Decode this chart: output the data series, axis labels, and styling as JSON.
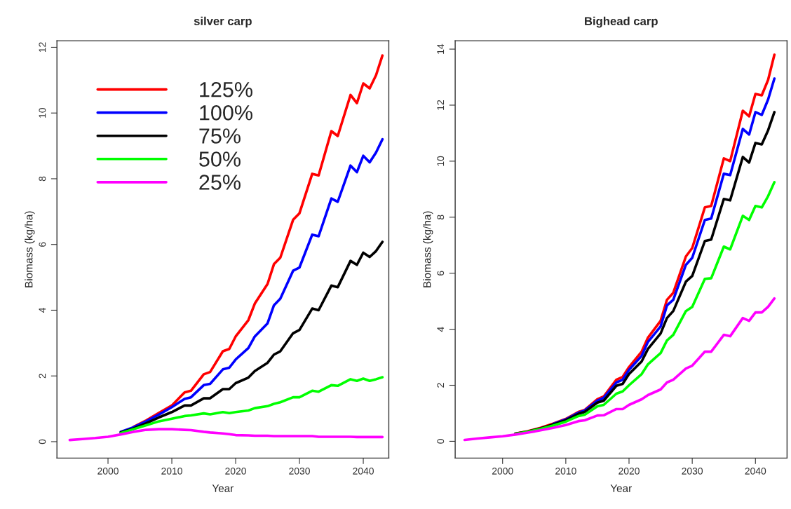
{
  "chart_data": [
    {
      "type": "line",
      "title": "silver carp",
      "xlabel": "Year",
      "ylabel": "Biomass (kg/ha)",
      "legend": "top left",
      "grid": false,
      "x": [
        1994,
        1996,
        1998,
        2000,
        2002,
        2004,
        2006,
        2008,
        2010,
        2012,
        2013,
        2015,
        2016,
        2018,
        2019,
        2020,
        2022,
        2023,
        2025,
        2026,
        2027,
        2029,
        2030,
        2032,
        2033,
        2035,
        2036,
        2038,
        2039,
        2040,
        2041,
        2042,
        2043
      ],
      "xlim": [
        1992,
        2044
      ],
      "xticks": [
        2000,
        2010,
        2020,
        2030,
        2040
      ],
      "ylim": [
        -0.5,
        12.2
      ],
      "yticks": [
        0,
        2,
        4,
        6,
        8,
        10,
        12
      ],
      "series": [
        {
          "name": "125%",
          "color": "#ff0000",
          "values": [
            null,
            null,
            null,
            null,
            null,
            0.45,
            0.65,
            0.88,
            1.1,
            1.5,
            1.55,
            2.05,
            2.12,
            2.75,
            2.82,
            3.2,
            3.7,
            4.2,
            4.8,
            5.4,
            5.6,
            6.75,
            6.95,
            8.15,
            8.1,
            9.45,
            9.3,
            10.55,
            10.3,
            10.9,
            10.75,
            11.15,
            11.75
          ]
        },
        {
          "name": "100%",
          "color": "#0000ff",
          "values": [
            null,
            null,
            null,
            null,
            0.3,
            0.44,
            0.62,
            0.83,
            1.05,
            1.3,
            1.35,
            1.72,
            1.76,
            2.2,
            2.25,
            2.5,
            2.85,
            3.2,
            3.6,
            4.15,
            4.35,
            5.2,
            5.3,
            6.3,
            6.25,
            7.4,
            7.3,
            8.4,
            8.2,
            8.7,
            8.5,
            8.8,
            9.2
          ]
        },
        {
          "name": "75%",
          "color": "#000000",
          "values": [
            null,
            null,
            null,
            null,
            0.28,
            0.4,
            0.56,
            0.74,
            0.9,
            1.1,
            1.1,
            1.32,
            1.32,
            1.6,
            1.6,
            1.78,
            1.95,
            2.15,
            2.4,
            2.65,
            2.75,
            3.3,
            3.4,
            4.05,
            4.0,
            4.75,
            4.7,
            5.5,
            5.38,
            5.75,
            5.62,
            5.8,
            6.08
          ]
        },
        {
          "name": "50%",
          "color": "#00ff00",
          "values": [
            null,
            null,
            null,
            null,
            0.26,
            0.38,
            0.5,
            0.62,
            0.7,
            0.78,
            0.8,
            0.86,
            0.83,
            0.9,
            0.87,
            0.9,
            0.95,
            1.02,
            1.08,
            1.15,
            1.2,
            1.35,
            1.35,
            1.55,
            1.52,
            1.72,
            1.7,
            1.9,
            1.85,
            1.92,
            1.85,
            1.9,
            1.96
          ]
        },
        {
          "name": "25%",
          "color": "#ff00ff",
          "values": [
            0.05,
            0.08,
            0.11,
            0.15,
            0.22,
            0.3,
            0.36,
            0.38,
            0.38,
            0.36,
            0.35,
            0.3,
            0.28,
            0.25,
            0.23,
            0.2,
            0.19,
            0.18,
            0.18,
            0.17,
            0.17,
            0.17,
            0.17,
            0.17,
            0.15,
            0.15,
            0.15,
            0.15,
            0.14,
            0.14,
            0.14,
            0.14,
            0.14
          ]
        }
      ]
    },
    {
      "type": "line",
      "title": "Bighead carp",
      "xlabel": "Year",
      "ylabel": "Biomass (kg/ha)",
      "grid": false,
      "x": [
        1994,
        1996,
        1998,
        2000,
        2002,
        2004,
        2006,
        2008,
        2010,
        2012,
        2013,
        2015,
        2016,
        2018,
        2019,
        2020,
        2022,
        2023,
        2025,
        2026,
        2027,
        2029,
        2030,
        2032,
        2033,
        2035,
        2036,
        2038,
        2039,
        2040,
        2041,
        2042,
        2043
      ],
      "xlim": [
        1992.5,
        2045
      ],
      "xticks": [
        2000,
        2010,
        2020,
        2030,
        2040
      ],
      "ylim": [
        -0.6,
        14.3
      ],
      "yticks": [
        0,
        2,
        4,
        6,
        8,
        10,
        12,
        14
      ],
      "series": [
        {
          "color": "#ff0000",
          "values": [
            null,
            null,
            null,
            null,
            0.27,
            0.36,
            0.48,
            0.63,
            0.8,
            1.05,
            1.12,
            1.5,
            1.6,
            2.2,
            2.3,
            2.65,
            3.2,
            3.7,
            4.3,
            5.05,
            5.3,
            6.6,
            6.9,
            8.35,
            8.4,
            10.1,
            10.0,
            11.8,
            11.6,
            12.4,
            12.35,
            12.9,
            13.8
          ]
        },
        {
          "color": "#0000ff",
          "values": [
            null,
            null,
            null,
            null,
            null,
            null,
            null,
            0.62,
            0.78,
            1.02,
            1.1,
            1.45,
            1.55,
            2.1,
            2.2,
            2.55,
            3.05,
            3.55,
            4.1,
            4.85,
            5.05,
            6.3,
            6.55,
            7.9,
            7.95,
            9.55,
            9.5,
            11.15,
            10.95,
            11.75,
            11.65,
            12.2,
            12.95
          ]
        },
        {
          "color": "#000000",
          "values": [
            null,
            null,
            null,
            null,
            0.27,
            0.35,
            0.46,
            0.6,
            0.75,
            0.98,
            1.05,
            1.38,
            1.45,
            1.98,
            2.05,
            2.4,
            2.85,
            3.3,
            3.85,
            4.4,
            4.65,
            5.7,
            5.9,
            7.15,
            7.2,
            8.65,
            8.6,
            10.15,
            9.95,
            10.65,
            10.6,
            11.1,
            11.75
          ]
        },
        {
          "color": "#00ff00",
          "values": [
            null,
            null,
            null,
            null,
            0.26,
            0.34,
            0.44,
            0.56,
            0.7,
            0.9,
            0.95,
            1.25,
            1.3,
            1.7,
            1.78,
            2.0,
            2.4,
            2.75,
            3.15,
            3.6,
            3.8,
            4.65,
            4.8,
            5.8,
            5.82,
            6.95,
            6.85,
            8.05,
            7.9,
            8.4,
            8.35,
            8.75,
            9.25
          ]
        },
        {
          "color": "#ff00ff",
          "values": [
            0.05,
            0.1,
            0.14,
            0.18,
            0.24,
            0.31,
            0.39,
            0.48,
            0.58,
            0.72,
            0.75,
            0.92,
            0.93,
            1.15,
            1.15,
            1.3,
            1.5,
            1.65,
            1.85,
            2.1,
            2.2,
            2.6,
            2.7,
            3.2,
            3.2,
            3.8,
            3.75,
            4.4,
            4.3,
            4.6,
            4.6,
            4.8,
            5.1
          ]
        }
      ]
    }
  ]
}
